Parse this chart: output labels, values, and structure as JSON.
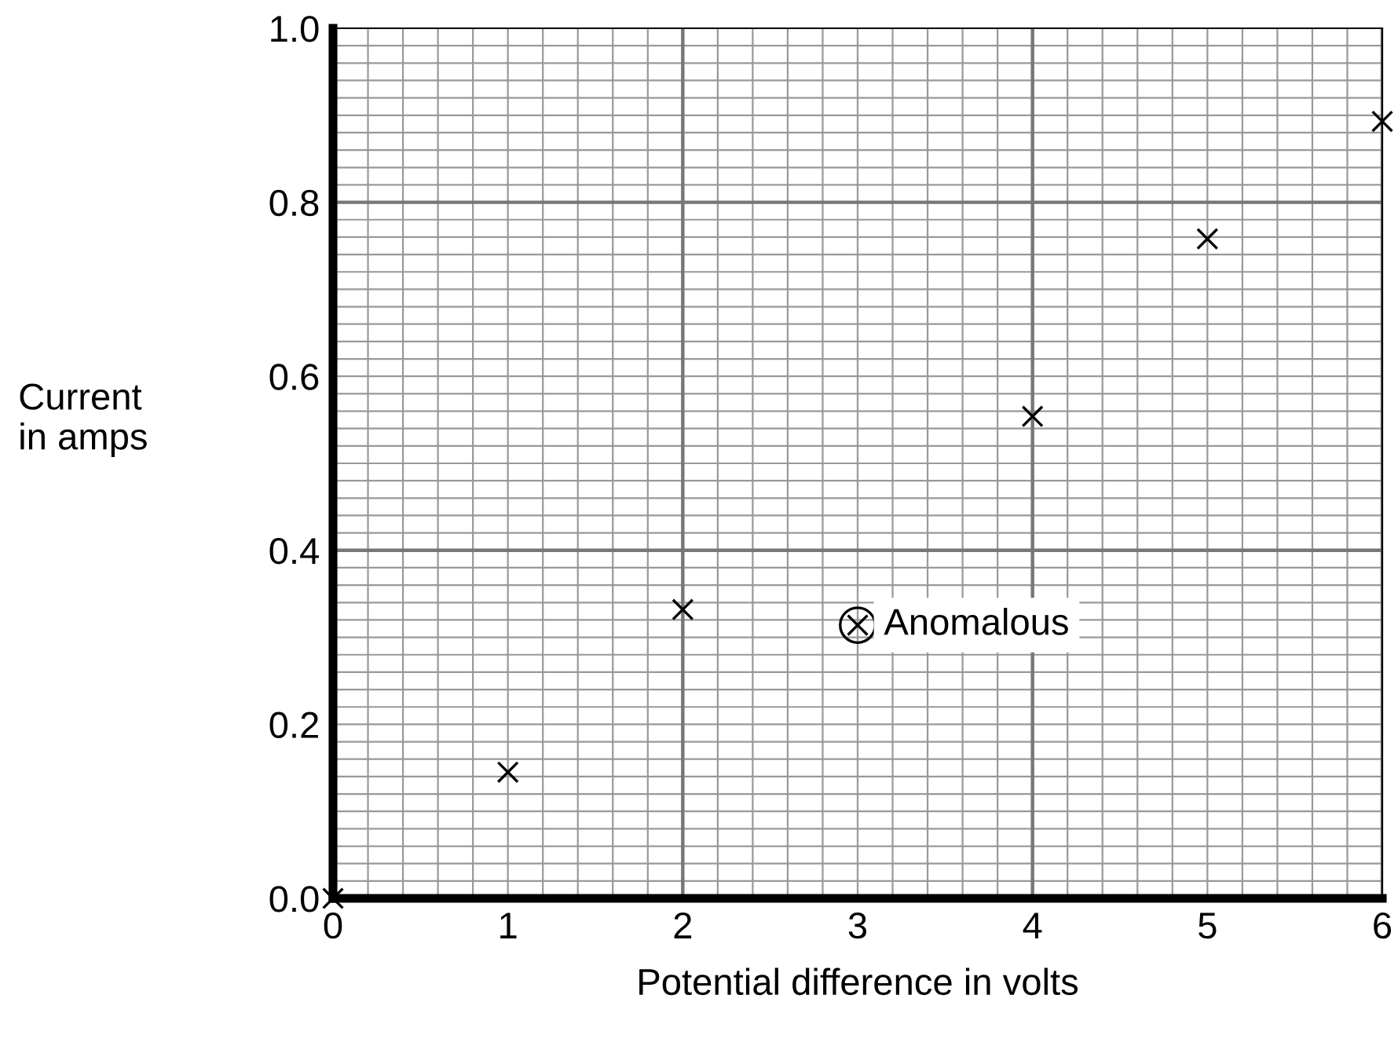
{
  "chart_data": {
    "type": "scatter",
    "xlabel": "Potential difference in volts",
    "ylabel": "Current\nin amps",
    "x": [
      0,
      1,
      2,
      3,
      4,
      5,
      6
    ],
    "values": [
      0,
      0.145,
      0.332,
      0.314,
      0.554,
      0.758,
      0.893
    ],
    "color": "#000000",
    "marker": "cross",
    "xlim": [
      0,
      6
    ],
    "xticks": [
      0,
      1,
      2,
      3,
      4,
      5,
      6
    ],
    "ylim": [
      0,
      1.0
    ],
    "yticks": [
      {
        "value": 0,
        "label": "0.0"
      },
      0.2,
      0.4,
      0.6,
      0.8,
      {
        "value": 1.0,
        "label": "1.0"
      }
    ],
    "grid": true,
    "annotations": [
      {
        "text": "Anomalous",
        "x": 3,
        "y": 0.314
      }
    ]
  }
}
